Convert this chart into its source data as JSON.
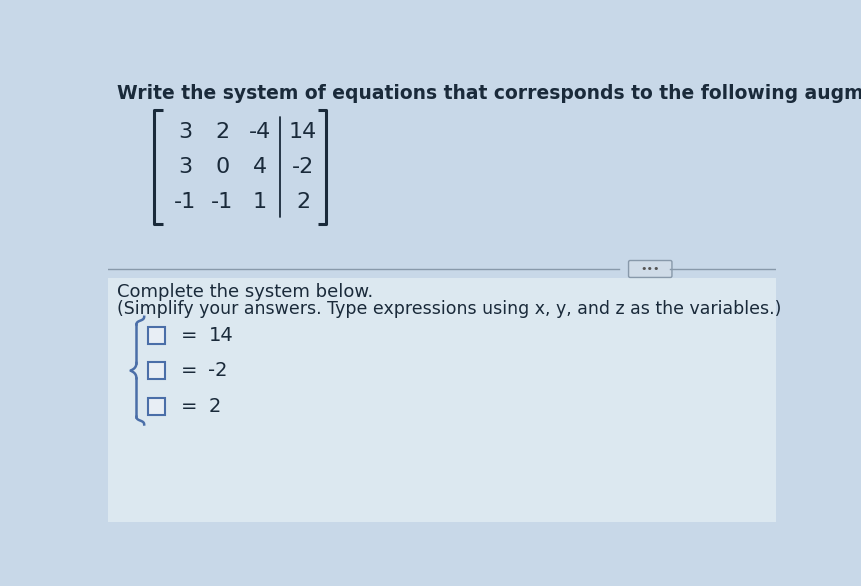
{
  "title": "Write the system of equations that corresponds to the following augmented matrix.",
  "matrix": [
    [
      3,
      2,
      -4,
      14
    ],
    [
      3,
      0,
      4,
      -2
    ],
    [
      -1,
      -1,
      1,
      2
    ]
  ],
  "divider_col": 3,
  "section2_line1": "Complete the system below.",
  "section2_line2": "(Simplify your answers. Type expressions using x, y, and z as the variables.)",
  "equations_rhs": [
    "14",
    "-2",
    "2"
  ],
  "top_bg": "#c8d8e8",
  "bottom_bg": "#dce8f0",
  "text_color": "#1a3a5c",
  "matrix_text_color": "#1a2a3a",
  "box_fill": "#e8eef5",
  "box_edge": "#4a6ea8",
  "brace_color": "#4a6ea8",
  "separator_color": "#8899aa",
  "dots_bg": "#d0dce8",
  "dots_edge": "#8899aa",
  "title_fontsize": 13.5,
  "matrix_fontsize": 16,
  "body_fontsize": 13,
  "eq_fontsize": 14,
  "bracket_color": "#1a2a3a"
}
